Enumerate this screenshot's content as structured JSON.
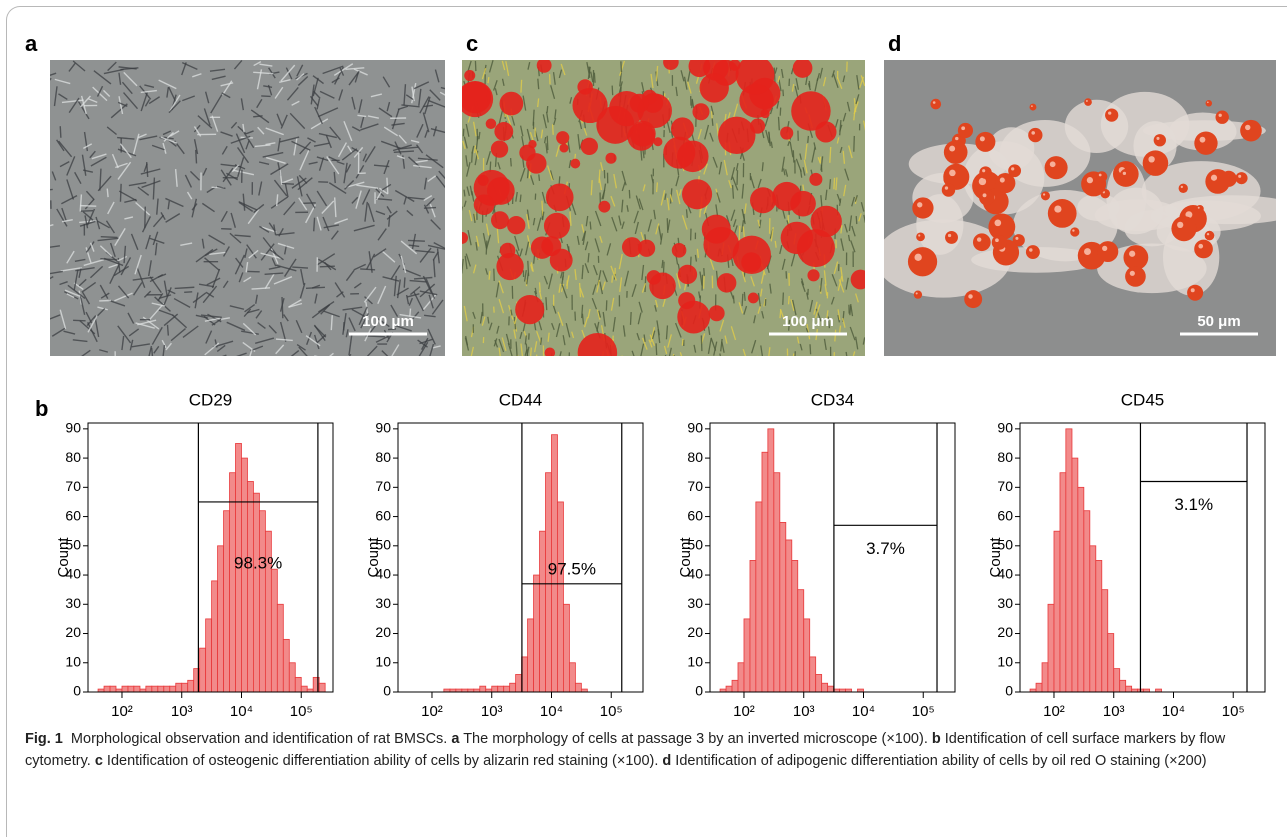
{
  "panels": [
    {
      "letter": "a",
      "scale_bar": "100 μm"
    },
    {
      "letter": "c",
      "scale_bar": "100 μm"
    },
    {
      "letter": "d",
      "scale_bar": "50 μm"
    }
  ],
  "panel_b_letter": "b",
  "chart_data": [
    {
      "type": "histogram",
      "title": "CD29",
      "y_label": "Count",
      "xscale": "log",
      "color": "#f28a8a",
      "edge_color": "#e8383a",
      "bins": [
        31.6,
        39.8,
        50.1,
        63.1,
        79.4,
        100,
        126,
        158,
        200,
        251,
        316,
        398,
        501,
        631,
        794,
        1000,
        1259,
        1585,
        1995,
        2512,
        3162,
        3981,
        5012,
        6310,
        7943,
        10000,
        12589,
        15849,
        19953,
        25119,
        31623,
        39811,
        50119,
        63096,
        79433,
        100000,
        125893,
        158489,
        199526,
        251189,
        316228
      ],
      "counts": [
        0,
        1,
        2,
        2,
        1,
        2,
        2,
        2,
        1,
        2,
        2,
        2,
        2,
        2,
        3,
        3,
        4,
        8,
        15,
        25,
        38,
        50,
        62,
        75,
        85,
        80,
        72,
        68,
        62,
        55,
        42,
        30,
        18,
        10,
        5,
        2,
        1,
        5,
        3,
        0
      ],
      "xlim": [
        27,
        340000
      ],
      "ylim": [
        0,
        92
      ],
      "xticks": [
        {
          "value": 100,
          "label": "10²"
        },
        {
          "value": 1000,
          "label": "10³"
        },
        {
          "value": 10000,
          "label": "10⁴"
        },
        {
          "value": 100000,
          "label": "10⁵"
        }
      ],
      "yticks": [
        0,
        10,
        20,
        30,
        40,
        50,
        60,
        70,
        80,
        90
      ],
      "gate": {
        "x": [
          1900,
          190000
        ],
        "y": 65,
        "label": "98.3%"
      }
    },
    {
      "type": "histogram",
      "title": "CD44",
      "y_label": "Count",
      "xscale": "log",
      "color": "#f28a8a",
      "edge_color": "#e8383a",
      "bins": [
        31.6,
        39.8,
        50.1,
        63.1,
        79.4,
        100,
        126,
        158,
        200,
        251,
        316,
        398,
        501,
        631,
        794,
        1000,
        1259,
        1585,
        1995,
        2512,
        3162,
        3981,
        5012,
        6310,
        7943,
        10000,
        12589,
        15849,
        19953,
        25119,
        31623,
        39811,
        50119,
        63096,
        79433,
        100000,
        125893,
        158489,
        199526,
        251189,
        316228
      ],
      "counts": [
        0,
        0,
        0,
        0,
        0,
        0,
        0,
        1,
        1,
        1,
        1,
        1,
        1,
        2,
        1,
        2,
        2,
        2,
        3,
        6,
        12,
        25,
        40,
        55,
        75,
        88,
        65,
        30,
        10,
        3,
        1,
        0,
        0,
        0,
        0,
        0,
        0,
        0,
        0,
        0
      ],
      "xlim": [
        27,
        340000
      ],
      "ylim": [
        0,
        92
      ],
      "xticks": [
        {
          "value": 100,
          "label": "10²"
        },
        {
          "value": 1000,
          "label": "10³"
        },
        {
          "value": 10000,
          "label": "10⁴"
        },
        {
          "value": 100000,
          "label": "10⁵"
        }
      ],
      "yticks": [
        0,
        10,
        20,
        30,
        40,
        50,
        60,
        70,
        80,
        90
      ],
      "gate": {
        "x": [
          3200,
          150000
        ],
        "y": 37,
        "label": "97.5%"
      }
    },
    {
      "type": "histogram",
      "title": "CD34",
      "y_label": "Count",
      "xscale": "log",
      "color": "#f28a8a",
      "edge_color": "#e8383a",
      "bins": [
        31.6,
        39.8,
        50.1,
        63.1,
        79.4,
        100,
        126,
        158,
        200,
        251,
        316,
        398,
        501,
        631,
        794,
        1000,
        1259,
        1585,
        1995,
        2512,
        3162,
        3981,
        5012,
        6310,
        7943,
        10000,
        12589,
        15849,
        19953,
        25119,
        31623,
        39811,
        50119,
        63096,
        79433,
        100000,
        125893,
        158489,
        199526,
        251189,
        316228
      ],
      "counts": [
        0,
        1,
        2,
        4,
        10,
        25,
        45,
        65,
        82,
        90,
        75,
        58,
        52,
        45,
        35,
        25,
        12,
        6,
        3,
        2,
        1,
        1,
        1,
        0,
        1,
        0,
        0,
        0,
        0,
        0,
        0,
        0,
        0,
        0,
        0,
        0,
        0,
        0,
        0,
        0
      ],
      "xlim": [
        27,
        340000
      ],
      "ylim": [
        0,
        92
      ],
      "xticks": [
        {
          "value": 100,
          "label": "10²"
        },
        {
          "value": 1000,
          "label": "10³"
        },
        {
          "value": 10000,
          "label": "10⁴"
        },
        {
          "value": 100000,
          "label": "10⁵"
        }
      ],
      "yticks": [
        0,
        10,
        20,
        30,
        40,
        50,
        60,
        70,
        80,
        90
      ],
      "gate": {
        "x": [
          3200,
          170000
        ],
        "y": 57,
        "label": "3.7%"
      }
    },
    {
      "type": "histogram",
      "title": "CD45",
      "y_label": "Count",
      "xscale": "log",
      "color": "#f28a8a",
      "edge_color": "#e8383a",
      "bins": [
        31.6,
        39.8,
        50.1,
        63.1,
        79.4,
        100,
        126,
        158,
        200,
        251,
        316,
        398,
        501,
        631,
        794,
        1000,
        1259,
        1585,
        1995,
        2512,
        3162,
        3981,
        5012,
        6310,
        7943,
        10000,
        12589,
        15849,
        19953,
        25119,
        31623,
        39811,
        50119,
        63096,
        79433,
        100000,
        125893,
        158489,
        199526,
        251189,
        316228
      ],
      "counts": [
        0,
        1,
        3,
        10,
        30,
        55,
        75,
        90,
        80,
        70,
        62,
        50,
        45,
        35,
        20,
        8,
        4,
        2,
        1,
        1,
        1,
        0,
        1,
        0,
        0,
        0,
        0,
        0,
        0,
        0,
        0,
        0,
        0,
        0,
        0,
        0,
        0,
        0,
        0,
        0
      ],
      "xlim": [
        27,
        340000
      ],
      "ylim": [
        0,
        92
      ],
      "xticks": [
        {
          "value": 100,
          "label": "10²"
        },
        {
          "value": 1000,
          "label": "10³"
        },
        {
          "value": 10000,
          "label": "10⁴"
        },
        {
          "value": 100000,
          "label": "10⁵"
        }
      ],
      "yticks": [
        0,
        10,
        20,
        30,
        40,
        50,
        60,
        70,
        80,
        90
      ],
      "gate": {
        "x": [
          2800,
          170000
        ],
        "y": 72,
        "label": "3.1%"
      }
    }
  ],
  "caption": [
    {
      "text": "Fig. 1",
      "bold": true
    },
    {
      "text": "  Morphological observation and identification of rat BMSCs. ",
      "bold": false
    },
    {
      "text": "a",
      "bold": true
    },
    {
      "text": " The morphology of cells at passage 3 by an inverted microscope (×100). ",
      "bold": false
    },
    {
      "text": "b",
      "bold": true
    },
    {
      "text": " Identification of cell surface markers by flow cytometry. ",
      "bold": false
    },
    {
      "text": "c",
      "bold": true
    },
    {
      "text": " Identification of osteogenic differentiation ability of cells by alizarin red staining (×100). ",
      "bold": false
    },
    {
      "text": "d",
      "bold": true
    },
    {
      "text": " Identification of adipogenic differentiation ability of cells by oil red O staining (×200)",
      "bold": false
    }
  ]
}
